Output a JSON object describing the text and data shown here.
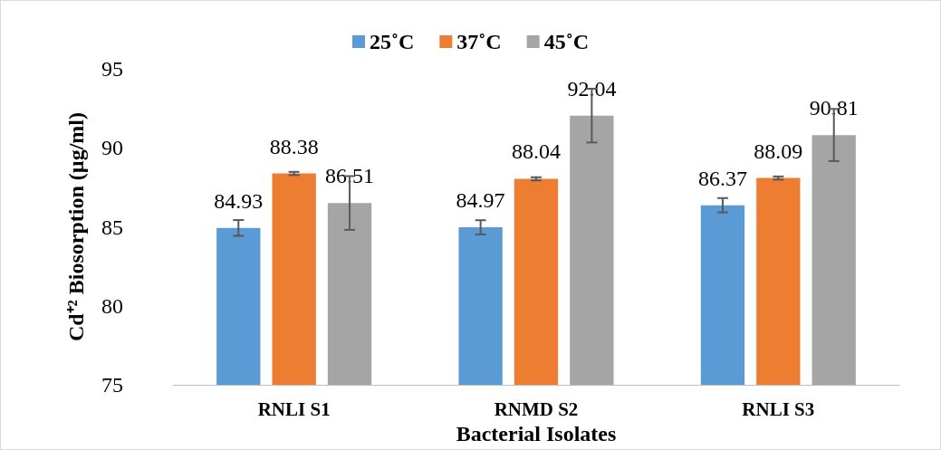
{
  "chart_data": {
    "type": "bar",
    "xlabel": "Bacterial Isolates",
    "ylabel": "Cd⁺² Biosorption (µg/ml)",
    "categories": [
      "RNLI S1",
      "RNMD S2",
      "RNLI S3"
    ],
    "series": [
      {
        "name": "25˚C",
        "color": "#5b9bd5",
        "values": [
          84.93,
          84.97,
          86.37
        ],
        "errors": [
          0.5,
          0.45,
          0.45
        ]
      },
      {
        "name": "37˚C",
        "color": "#ed7d31",
        "values": [
          88.38,
          88.04,
          88.09
        ],
        "errors": [
          0.1,
          0.1,
          0.1
        ]
      },
      {
        "name": "45˚C",
        "color": "#a5a5a5",
        "values": [
          86.51,
          92.04,
          90.81
        ],
        "errors": [
          1.7,
          1.7,
          1.65
        ]
      }
    ],
    "ylim": [
      75,
      95
    ],
    "yticks": [
      75,
      80,
      85,
      90,
      95
    ],
    "grid": false,
    "legend": "top",
    "data_labels": true
  }
}
